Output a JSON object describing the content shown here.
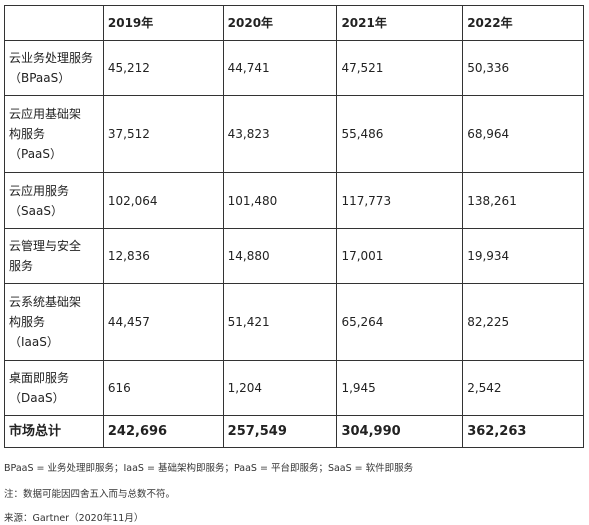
{
  "table": {
    "header": [
      "",
      "2019年",
      "2020年",
      "2021年",
      "2022年"
    ],
    "rows": [
      [
        [
          "云业务处理服务",
          "（BPaaS）"
        ],
        "45,212",
        "44,741",
        "47,521",
        "50,336"
      ],
      [
        [
          "云应用基础架",
          "构服务",
          "（PaaS）"
        ],
        "37,512",
        "43,823",
        "55,486",
        "68,964"
      ],
      [
        [
          "云应用服务",
          "（SaaS）"
        ],
        "102,064",
        "101,480",
        "117,773",
        "138,261"
      ],
      [
        [
          "云管理与安全",
          "服务"
        ],
        "12,836",
        "14,880",
        "17,001",
        "19,934"
      ],
      [
        [
          "云系统基础架",
          "构服务",
          "（IaaS）"
        ],
        "44,457",
        "51,421",
        "65,264",
        "82,225"
      ],
      [
        [
          "桌面即服务",
          "（DaaS）"
        ],
        "616",
        "1,204",
        "1,945",
        "2,542"
      ]
    ],
    "total": [
      "市场总计",
      "242,696",
      "257,549",
      "304,990",
      "362,263"
    ]
  },
  "notes": [
    "BPaaS = 业务处理即服务；IaaS = 基础架构即服务；PaaS = 平台即服务；SaaS = 软件即服务",
    "注：数据可能因四舍五入而与总数不符。",
    "来源：Gartner（2020年11月）"
  ]
}
